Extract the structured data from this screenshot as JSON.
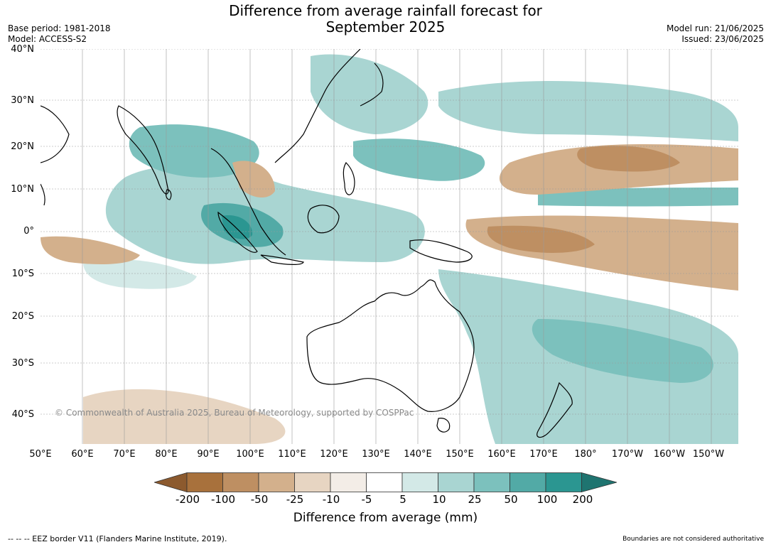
{
  "title": "Difference from average rainfall forecast for September 2025",
  "title_line1": "Difference from average rainfall forecast for",
  "title_line2": "September 2025",
  "meta_left": {
    "base_period": "Base period: 1981-2018",
    "model": "Model: ACCESS-S2"
  },
  "meta_right": {
    "model_run": "Model run: 21/06/2025",
    "issued": "Issued: 23/06/2025"
  },
  "copyright": "© Commonwealth of Australia 2025, Bureau of Meteorology, supported by COSPPac",
  "lat_labels": [
    "40°N",
    "30°N",
    "20°N",
    "10°N",
    "0°",
    "10°S",
    "20°S",
    "30°S",
    "40°S"
  ],
  "lon_labels": [
    "50°E",
    "60°E",
    "70°E",
    "80°E",
    "90°E",
    "100°E",
    "110°E",
    "120°E",
    "130°E",
    "140°E",
    "150°E",
    "160°E",
    "170°E",
    "180°",
    "170°W",
    "160°W",
    "150°W"
  ],
  "legend": {
    "title": "Difference from average (mm)",
    "labels": [
      "-200",
      "-100",
      "-50",
      "-25",
      "-10",
      "-5",
      "5",
      "10",
      "25",
      "50",
      "100",
      "200"
    ],
    "colors": {
      "below_min": "#8c5a2e",
      "-200_-100": "#a8713c",
      "-100_-50": "#be8f62",
      "-50_-25": "#d3b08c",
      "-25_-10": "#e7d5c2",
      "-10_-5": "#f3ede7",
      "-5_5": "#ffffff",
      "5_10": "#d3e9e7",
      "10_25": "#a9d5d2",
      "25_50": "#7cc1bd",
      "50_100": "#52aaa6",
      "100_200": "#2b9691",
      "above_max": "#1f7470"
    }
  },
  "footer_left": "-- -- -- EEZ border V11 (Flanders Marine Institute, 2019).",
  "footer_right": "Boundaries are not considered authoritative"
}
